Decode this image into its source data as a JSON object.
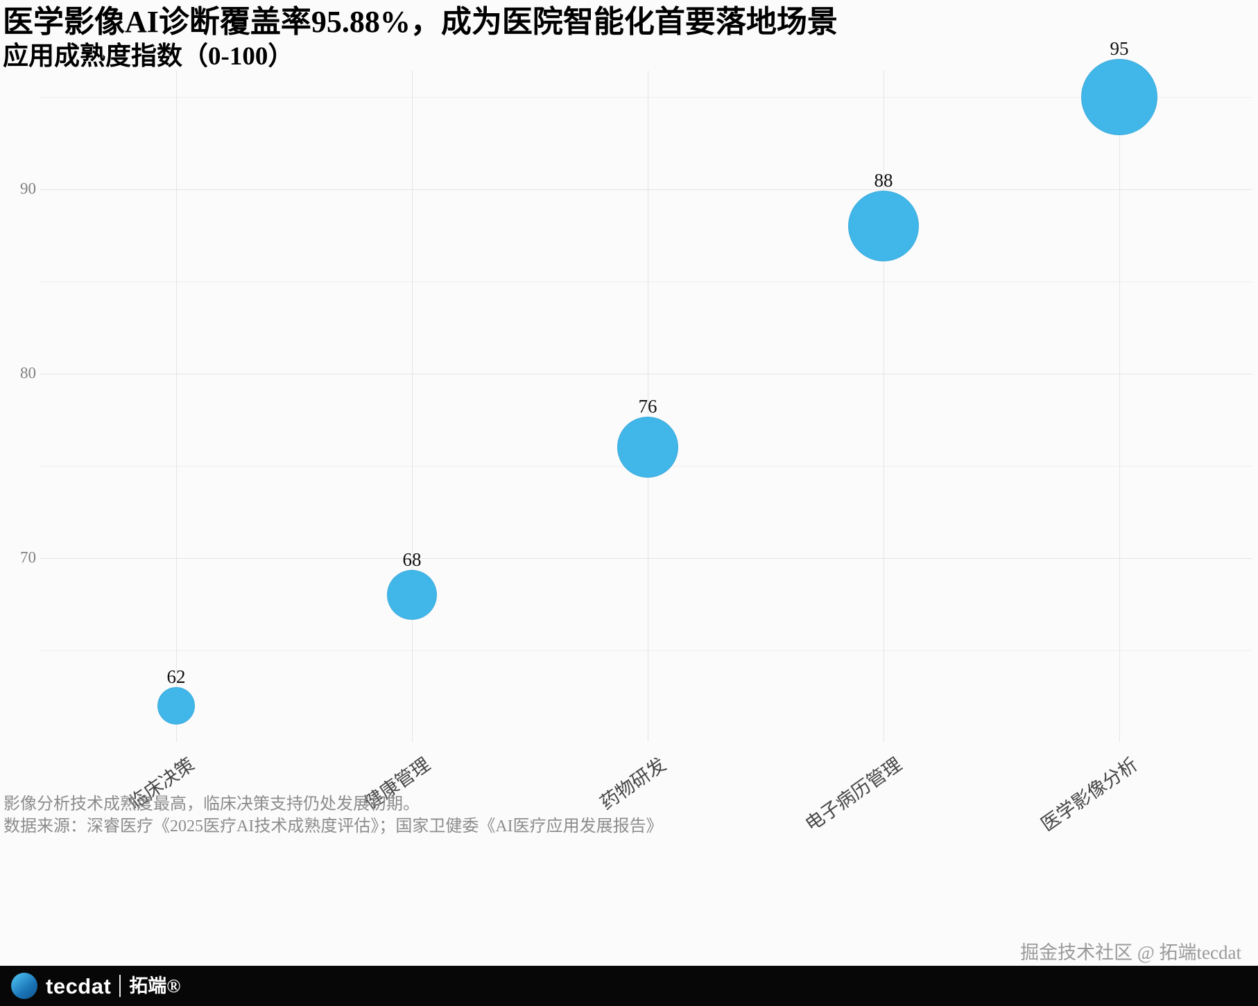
{
  "title": "医学影像AI诊断覆盖率95.88%，成为医院智能化首要落地场景",
  "subtitle": "应用成熟度指数（0-100）",
  "chart_data": {
    "type": "scatter",
    "title": "医学影像AI诊断覆盖率95.88%，成为医院智能化首要落地场景",
    "subtitle": "应用成熟度指数（0-100）",
    "categories": [
      "临床决策",
      "健康管理",
      "药物研发",
      "电子病历管理",
      "医学影像分析"
    ],
    "values": [
      62,
      68,
      76,
      88,
      95
    ],
    "value_labels": [
      "62",
      "68",
      "76",
      "88",
      "95"
    ],
    "xlabel": "",
    "ylabel": "",
    "ylim": [
      60,
      96.5
    ],
    "yticks": [
      70,
      80,
      90
    ],
    "minor_yticks": [
      65,
      75,
      85,
      95
    ],
    "grid": true,
    "legend": false,
    "bubble_color": "#41b6e8",
    "bubble_radius_px": [
      27,
      36,
      44,
      51,
      55
    ],
    "axis_text_color": "#7f7f7f"
  },
  "footnotes": {
    "insight": "影像分析技术成熟度最高，临床决策支持仍处发展初期。",
    "source": "数据来源：深睿医疗《2025医疗AI技术成熟度评估》；国家卫健委《AI医疗应用发展报告》"
  },
  "footer": {
    "credit": "掘金技术社区 @ 拓端tecdat",
    "brand_en": "tecdat",
    "brand_cn": "拓端®"
  }
}
